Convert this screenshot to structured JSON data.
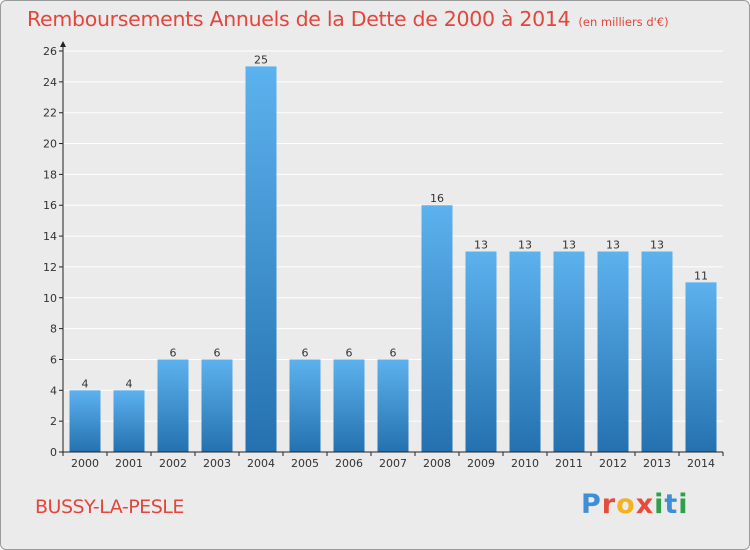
{
  "title": "Remboursements Annuels de la Dette de 2000 à 2014",
  "unit": "(en milliers d'€)",
  "commune": "BUSSY-LA-PESLE",
  "logo": {
    "letters": [
      {
        "ch": "P",
        "color": "#3f8fd6"
      },
      {
        "ch": "r",
        "color": "#e84a3c"
      },
      {
        "ch": "o",
        "color": "#f3b21f"
      },
      {
        "ch": "x",
        "color": "#e84a3c"
      },
      {
        "ch": "i",
        "color": "#2f9f48"
      },
      {
        "ch": "t",
        "color": "#3f8fd6"
      },
      {
        "ch": "i",
        "color": "#2f9f48"
      }
    ]
  },
  "colors": {
    "text_accent": "#e2463c",
    "bar_top": "#5cb2ee",
    "bar_bottom": "#2571b0",
    "background": "#ebebeb",
    "grid": "#ffffff",
    "axis": "#222222"
  },
  "chart_data": {
    "type": "bar",
    "categories": [
      "2000",
      "2001",
      "2002",
      "2003",
      "2004",
      "2005",
      "2006",
      "2007",
      "2008",
      "2009",
      "2010",
      "2011",
      "2012",
      "2013",
      "2014"
    ],
    "values": [
      4,
      4,
      6,
      6,
      25,
      6,
      6,
      6,
      16,
      13,
      13,
      13,
      13,
      13,
      11
    ],
    "data_labels": [
      "4",
      "4",
      "6",
      "6",
      "25",
      "6",
      "6",
      "6",
      "16",
      "13",
      "13",
      "13",
      "13",
      "13",
      "11"
    ],
    "ylim": [
      0,
      26
    ],
    "yticks": [
      0,
      2,
      4,
      6,
      8,
      10,
      12,
      14,
      16,
      18,
      20,
      22,
      24,
      26
    ],
    "grid": true,
    "xlabel": "",
    "ylabel": ""
  }
}
